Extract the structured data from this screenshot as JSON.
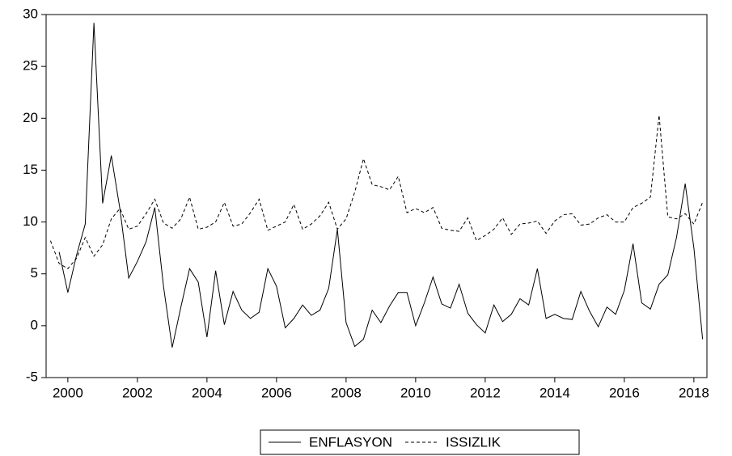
{
  "chart_data": {
    "type": "line",
    "categories": [
      null,
      null,
      "2000",
      null,
      null,
      null,
      null,
      null,
      null,
      null,
      "2002",
      null,
      null,
      null,
      null,
      null,
      null,
      null,
      "2004",
      null,
      null,
      null,
      null,
      null,
      null,
      null,
      "2006",
      null,
      null,
      null,
      null,
      null,
      null,
      null,
      "2008",
      null,
      null,
      null,
      null,
      null,
      null,
      null,
      "2010",
      null,
      null,
      null,
      null,
      null,
      null,
      null,
      "2012",
      null,
      null,
      null,
      null,
      null,
      null,
      null,
      "2014",
      null,
      null,
      null,
      null,
      null,
      null,
      null,
      "2016",
      null,
      null,
      null,
      null,
      null,
      null,
      null,
      "2018",
      null
    ],
    "series": [
      {
        "name": "ENFLASYON",
        "color": "#000000",
        "dash": false,
        "values": [
          null,
          7.1,
          3.2,
          6.8,
          9.8,
          29.2,
          11.8,
          16.4,
          11.2,
          4.6,
          6.2,
          8.1,
          11.4,
          3.8,
          -2.1,
          1.8,
          5.5,
          4.2,
          -1.1,
          5.3,
          0.1,
          3.3,
          1.5,
          0.7,
          1.3,
          5.5,
          3.8,
          -0.2,
          0.7,
          2.0,
          1.0,
          1.5,
          3.6,
          9.3,
          0.3,
          -2.0,
          -1.3,
          1.5,
          0.3,
          1.9,
          3.2,
          3.2,
          0.0,
          2.2,
          4.7,
          2.1,
          1.7,
          4.0,
          1.2,
          0.1,
          -0.7,
          2.0,
          0.4,
          1.1,
          2.6,
          2.0,
          5.5,
          0.7,
          1.1,
          0.7,
          0.6,
          3.3,
          1.4,
          -0.1,
          1.8,
          1.1,
          3.4,
          7.9,
          2.2,
          1.6,
          4.0,
          4.9,
          8.5,
          13.7,
          7.5,
          -1.3
        ]
      },
      {
        "name": "ISSIZLIK",
        "color": "#000000",
        "dash": true,
        "values": [
          8.2,
          6.0,
          5.5,
          6.5,
          8.5,
          6.7,
          7.8,
          10.3,
          11.3,
          9.3,
          9.6,
          10.8,
          12.2,
          9.9,
          9.4,
          10.3,
          12.4,
          9.3,
          9.5,
          10.0,
          11.9,
          9.6,
          9.8,
          10.9,
          12.2,
          9.2,
          9.6,
          10.0,
          11.7,
          9.3,
          9.8,
          10.6,
          11.9,
          9.3,
          10.3,
          12.9,
          16.1,
          13.6,
          13.4,
          13.1,
          14.4,
          10.9,
          11.3,
          10.9,
          11.4,
          9.4,
          9.2,
          9.1,
          10.4,
          8.2,
          8.7,
          9.3,
          10.4,
          8.8,
          9.8,
          9.9,
          10.1,
          8.9,
          10.1,
          10.7,
          10.8,
          9.7,
          9.8,
          10.4,
          10.7,
          10.0,
          10.0,
          11.4,
          11.8,
          12.4,
          20.3,
          10.5,
          10.3,
          10.8,
          9.8,
          11.9
        ]
      }
    ],
    "ylim": [
      -5,
      30
    ],
    "yticks": [
      -5,
      0,
      5,
      10,
      15,
      20,
      25,
      30
    ],
    "grid": false,
    "legend": "bottom"
  }
}
